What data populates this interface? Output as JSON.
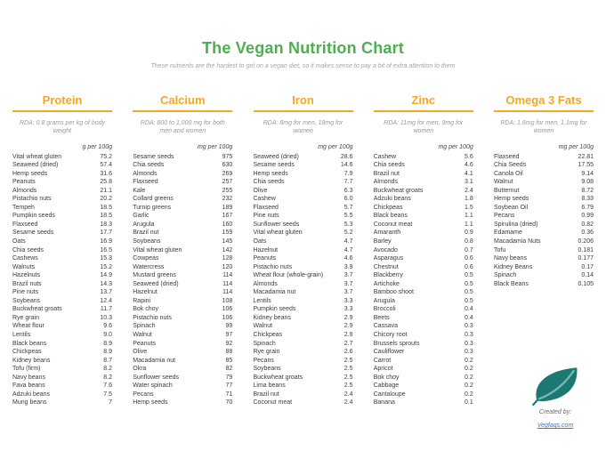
{
  "title": "The Vegan Nutrition Chart",
  "subtitle": "These nutrients are the hardest to get on a vegan diet, so it makes sense to pay a bit of extra attention to them",
  "footer": {
    "created_by": "Created by:",
    "link": "Vegfaqs.com"
  },
  "colors": {
    "title_green": "#4CAF50",
    "header_orange": "#F5A623",
    "leaf_teal": "#1D7874",
    "link_blue": "#4472C4"
  },
  "chart_data": {
    "type": "table",
    "tables": [
      {
        "title": "Protein",
        "rda": "RDA: 0.8 grams per kg of body weight",
        "unit": "g per 100g",
        "rows": [
          [
            "Vital wheat gluten",
            "75.2"
          ],
          [
            "Seaweed (dried)",
            "57.4"
          ],
          [
            "Hemp seeds",
            "31.6"
          ],
          [
            "Peanuts",
            "25.8"
          ],
          [
            "Almonds",
            "21.1"
          ],
          [
            "Pistachio nuts",
            "20.2"
          ],
          [
            "Tempeh",
            "18.5"
          ],
          [
            "Pumpkin seeds",
            "18.5"
          ],
          [
            "Flaxseed",
            "18.3"
          ],
          [
            "Sesame seeds",
            "17.7"
          ],
          [
            "Oats",
            "16.9"
          ],
          [
            "Chia seeds",
            "16.5"
          ],
          [
            "Cashews",
            "15.3"
          ],
          [
            "Walnuts",
            "15.2"
          ],
          [
            "Hazelnuts",
            "14.9"
          ],
          [
            "Brazil nuts",
            "14.3"
          ],
          [
            "Pine nuts",
            "13.7"
          ],
          [
            "Soybeans",
            "12.4"
          ],
          [
            "Buckwheat groats",
            "11.7"
          ],
          [
            "Rye grain",
            "10.3"
          ],
          [
            "Wheat flour",
            "9.6"
          ],
          [
            "Lentils",
            "9.0"
          ],
          [
            "Black beans",
            "8.9"
          ],
          [
            "Chickpeas",
            "8.9"
          ],
          [
            "Kidney beans",
            "8.7"
          ],
          [
            "Tofu (firm)",
            "8.2"
          ],
          [
            "Navy beans",
            "8.2"
          ],
          [
            "Fava beans",
            "7.6"
          ],
          [
            "Adzuki beans",
            "7.5"
          ],
          [
            "Mung beans",
            "7"
          ]
        ]
      },
      {
        "title": "Calcium",
        "rda": "RDA: 800 to 1,000 mg for both men and women",
        "unit": "mg per 100g",
        "rows": [
          [
            "Sesame seeds",
            "975"
          ],
          [
            "Chia seeds",
            "630"
          ],
          [
            "Almonds",
            "269"
          ],
          [
            "Flaxseed",
            "257"
          ],
          [
            "Kale",
            "255"
          ],
          [
            "Collard greens",
            "232"
          ],
          [
            "Turnip greens",
            "189"
          ],
          [
            "Garlic",
            "167"
          ],
          [
            "Arugula",
            "160"
          ],
          [
            "Brazil nut",
            "159"
          ],
          [
            "Soybeans",
            "145"
          ],
          [
            "Vital wheat gluten",
            "142"
          ],
          [
            "Cowpeas",
            "128"
          ],
          [
            "Watercress",
            "120"
          ],
          [
            "Mustard greens",
            "114"
          ],
          [
            "Seaweed (dried)",
            "114"
          ],
          [
            "Hazelnut",
            "114"
          ],
          [
            "Rapini",
            "108"
          ],
          [
            "Bok choy",
            "106"
          ],
          [
            "Pistachio nuts",
            "106"
          ],
          [
            "Spinach",
            "99"
          ],
          [
            "Walnut",
            "97"
          ],
          [
            "Peanuts",
            "92"
          ],
          [
            "Olive",
            "88"
          ],
          [
            "Macadamia nut",
            "85"
          ],
          [
            "Okra",
            "82"
          ],
          [
            "Sunflower seeds",
            "79"
          ],
          [
            "Water spinach",
            "77"
          ],
          [
            "Pecans",
            "71"
          ],
          [
            "Hemp seeds",
            "70"
          ]
        ]
      },
      {
        "title": "Iron",
        "rda": "RDA: 8mg for men, 18mg for women",
        "unit": "mg per 100g",
        "rows": [
          [
            "Seaweed (dried)",
            "28.6"
          ],
          [
            "Sesame seeds",
            "14.6"
          ],
          [
            "Hemp seeds",
            "7.9"
          ],
          [
            "Chia seeds",
            "7.7"
          ],
          [
            "Olive",
            "6.3"
          ],
          [
            "Cashew",
            "6.0"
          ],
          [
            "Flaxseed",
            "5.7"
          ],
          [
            "Pine nuts",
            "5.5"
          ],
          [
            "Sunflower seeds",
            "5.3"
          ],
          [
            "Vital wheat gluten",
            "5.2"
          ],
          [
            "Oats",
            "4.7"
          ],
          [
            "Hazelnut",
            "4.7"
          ],
          [
            "Peanuts",
            "4.6"
          ],
          [
            "Pistachio nuts",
            "3.9"
          ],
          [
            "Wheat flour (whole-grain)",
            "3.7"
          ],
          [
            "Almonds",
            "3.7"
          ],
          [
            "Macadamia nut",
            "3.7"
          ],
          [
            "Lentils",
            "3.3"
          ],
          [
            "Pumpkin seeds",
            "3.3"
          ],
          [
            "Kidney beans",
            "2.9"
          ],
          [
            "Walnut",
            "2.9"
          ],
          [
            "Chickpeas",
            "2.9"
          ],
          [
            "Spinach",
            "2.7"
          ],
          [
            "Rye grain",
            "2.6"
          ],
          [
            "Pecans",
            "2.5"
          ],
          [
            "Soybeans",
            "2.5"
          ],
          [
            "Buckwheat groats",
            "2.5"
          ],
          [
            "Lima beans",
            "2.5"
          ],
          [
            "Brazil nut",
            "2.4"
          ],
          [
            "Coconut meat",
            "2.4"
          ]
        ]
      },
      {
        "title": "Zinc",
        "rda": "RDA: 11mg for men, 9mg for women",
        "unit": "mg per 100g",
        "rows": [
          [
            "Cashew",
            "5.6"
          ],
          [
            "Chia seeds",
            "4.6"
          ],
          [
            "Brazil nut",
            "4.1"
          ],
          [
            "Almonds",
            "3.1"
          ],
          [
            "Buckwheat groats",
            "2.4"
          ],
          [
            "Adzuki beans",
            "1.8"
          ],
          [
            "Chickpeas",
            "1.5"
          ],
          [
            "Black beans",
            "1.1"
          ],
          [
            "Coconut meat",
            "1.1"
          ],
          [
            "Amaranth",
            "0.9"
          ],
          [
            "Barley",
            "0.8"
          ],
          [
            "Avocado",
            "0.7"
          ],
          [
            "Asparagus",
            "0.6"
          ],
          [
            "Chestnut",
            "0.6"
          ],
          [
            "Blackberry",
            "0.5"
          ],
          [
            "Artichoke",
            "0.5"
          ],
          [
            "Bamboo shoot",
            "0.5"
          ],
          [
            "Arugula",
            "0.5"
          ],
          [
            "Broccoli",
            "0.4"
          ],
          [
            "Beets",
            "0.4"
          ],
          [
            "Cassava",
            "0.3"
          ],
          [
            "Chicory root",
            "0.3"
          ],
          [
            "Brussels sprouts",
            "0.3"
          ],
          [
            "Cauliflower",
            "0.3"
          ],
          [
            "Carrot",
            "0.2"
          ],
          [
            "Apricot",
            "0.2"
          ],
          [
            "Bok choy",
            "0.2"
          ],
          [
            "Cabbage",
            "0.2"
          ],
          [
            "Cantaloupe",
            "0.2"
          ],
          [
            "Banana",
            "0.1"
          ]
        ]
      },
      {
        "title": "Omega 3 Fats",
        "rda": "RDA: 1.6mg for men, 1.1mg for women",
        "unit": "mg per 100g",
        "rows": [
          [
            "Flaxseed",
            "22.81"
          ],
          [
            "Chia Seeds",
            "17.55"
          ],
          [
            "Canola Oil",
            "9.14"
          ],
          [
            "Walnut",
            "9.08"
          ],
          [
            "Butternut",
            "8.72"
          ],
          [
            "Hemp seeds",
            "8.33"
          ],
          [
            "Soybean Oil",
            "6.79"
          ],
          [
            "Pecans",
            "0.99"
          ],
          [
            "Spirulina (dried)",
            "0.82"
          ],
          [
            "Edamame",
            "0.36"
          ],
          [
            "Macadamia Nuts",
            "0.206"
          ],
          [
            "Tofu",
            "0.181"
          ],
          [
            "Navy beans",
            "0.177"
          ],
          [
            "Kidney Beans",
            "0.17"
          ],
          [
            "Spinach",
            "0.14"
          ],
          [
            "Black Beans",
            "0.105"
          ]
        ]
      }
    ]
  }
}
